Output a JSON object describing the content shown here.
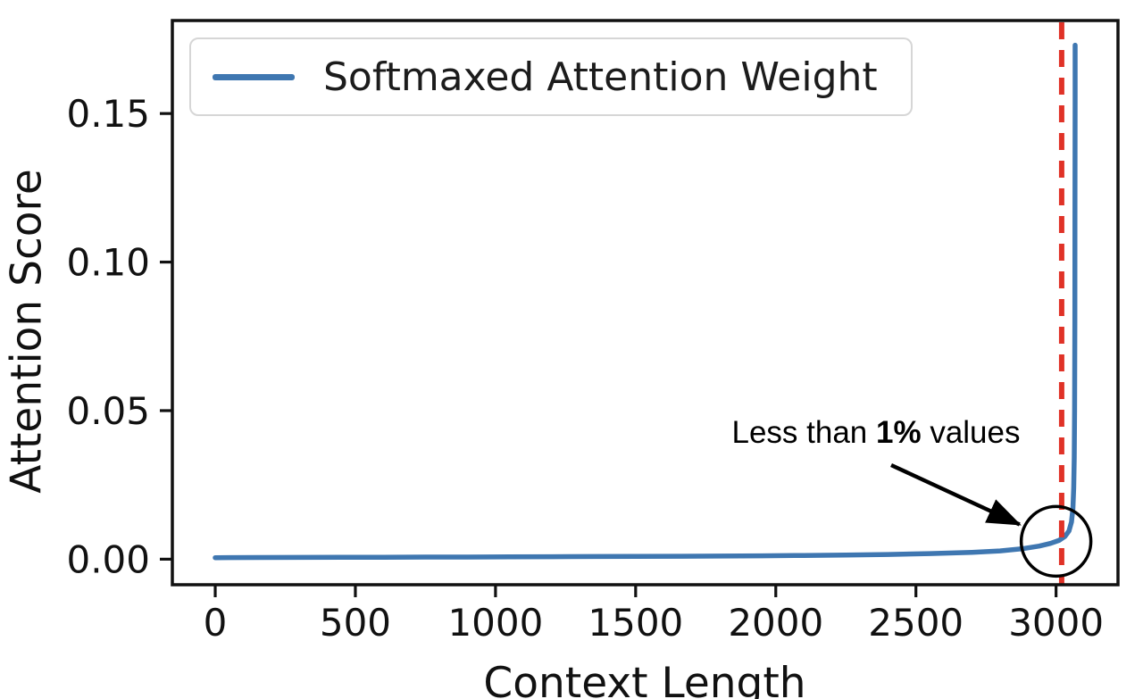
{
  "chart_data": {
    "type": "line",
    "title": "",
    "xlabel": "Context Length",
    "ylabel": "Attention Score",
    "xlim": [
      -153,
      3221
    ],
    "ylim": [
      -0.0086,
      0.1813
    ],
    "x_ticks": [
      0,
      500,
      1000,
      1500,
      2000,
      2500,
      3000
    ],
    "y_ticks": [
      0,
      0.05,
      0.1,
      0.15
    ],
    "y_tick_labels": [
      "0.00",
      "0.05",
      "0.10",
      "0.15"
    ],
    "grid": false,
    "legend_position": "upper left",
    "series": [
      {
        "name": "Softmaxed Attention Weight",
        "color": "#3f77b1",
        "points": [
          [
            0,
            0.0005
          ],
          [
            150,
            0.00055
          ],
          [
            300,
            0.0006
          ],
          [
            450,
            0.00062
          ],
          [
            600,
            0.00065
          ],
          [
            750,
            0.0007
          ],
          [
            900,
            0.00072
          ],
          [
            1050,
            0.00078
          ],
          [
            1200,
            0.00082
          ],
          [
            1350,
            0.00088
          ],
          [
            1500,
            0.00092
          ],
          [
            1650,
            0.00098
          ],
          [
            1800,
            0.00105
          ],
          [
            1950,
            0.00115
          ],
          [
            2100,
            0.00125
          ],
          [
            2250,
            0.0014
          ],
          [
            2400,
            0.0016
          ],
          [
            2550,
            0.0019
          ],
          [
            2700,
            0.0023
          ],
          [
            2800,
            0.0028
          ],
          [
            2880,
            0.0035
          ],
          [
            2940,
            0.0044
          ],
          [
            2980,
            0.0053
          ],
          [
            3010,
            0.0063
          ],
          [
            3032,
            0.0077
          ],
          [
            3046,
            0.0095
          ],
          [
            3055,
            0.0125
          ],
          [
            3060,
            0.017
          ],
          [
            3063,
            0.024
          ],
          [
            3065,
            0.034
          ],
          [
            3066,
            0.05
          ],
          [
            3067,
            0.08
          ],
          [
            3067.5,
            0.115
          ],
          [
            3068,
            0.155
          ],
          [
            3068,
            0.173
          ]
        ]
      }
    ],
    "vline": {
      "x": 3020,
      "color": "#e03227",
      "style": "dashed"
    },
    "annotation": {
      "text": "Less than 1% values",
      "points_to": {
        "x": 3000,
        "y": 0.006
      }
    }
  },
  "figure": {
    "annotation": {
      "prefix": "Less than ",
      "bold": "1%",
      "suffix": " values"
    }
  },
  "colors": {
    "line": "#3f77b1",
    "vline": "#e03227",
    "spine": "#111111",
    "legend_border": "#d6d6d6"
  }
}
